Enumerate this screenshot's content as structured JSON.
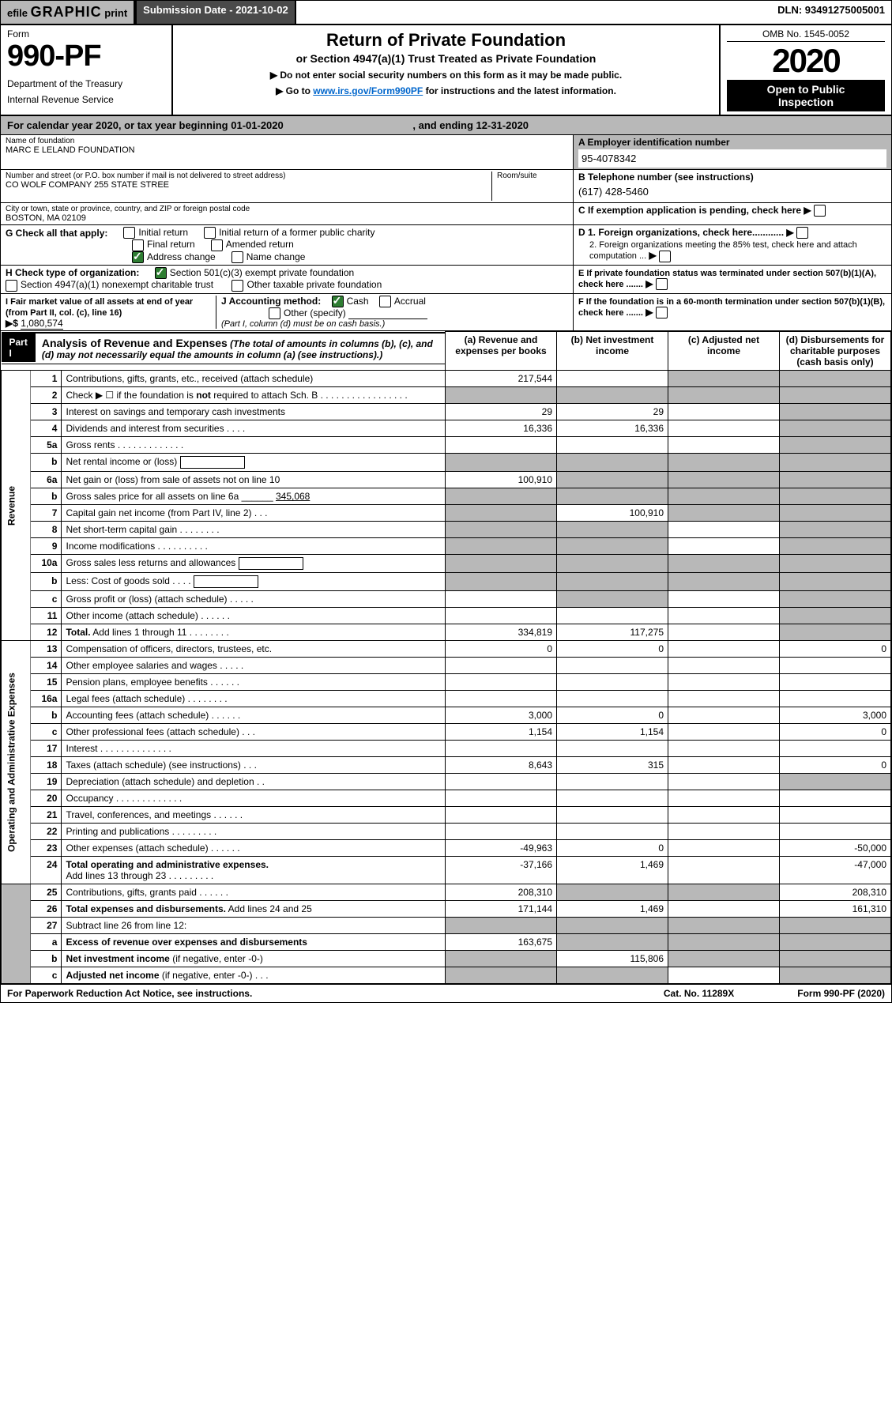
{
  "colors": {
    "header_gray": "#b8b8b8",
    "header_dark": "#4a4a4a",
    "black": "#000000",
    "link": "#0066cc",
    "check_green": "#2e7d32",
    "shade": "#b8b8b8"
  },
  "topbar": {
    "efile": "efile",
    "graphic": "GRAPHIC",
    "print": "print",
    "submission_label": "Submission Date - 2021-10-02",
    "dln": "DLN: 93491275005001"
  },
  "header": {
    "form_word": "Form",
    "form_number": "990-PF",
    "dept1": "Department of the Treasury",
    "dept2": "Internal Revenue Service",
    "title": "Return of Private Foundation",
    "subtitle": "or Section 4947(a)(1) Trust Treated as Private Foundation",
    "note1": "▶ Do not enter social security numbers on this form as it may be made public.",
    "note2_pre": "▶ Go to ",
    "note2_link": "www.irs.gov/Form990PF",
    "note2_post": " for instructions and the latest information.",
    "omb": "OMB No. 1545-0052",
    "year": "2020",
    "openbox1": "Open to Public",
    "openbox2": "Inspection"
  },
  "calyear": {
    "text_pre": "For calendar year 2020, or tax year beginning ",
    "begin": "01-01-2020",
    "mid": ", and ending ",
    "end": "12-31-2020"
  },
  "org": {
    "name_label": "Name of foundation",
    "name": "MARC E LELAND FOUNDATION",
    "addr_label": "Number and street (or P.O. box number if mail is not delivered to street address)",
    "addr": "CO WOLF COMPANY 255 STATE STREE",
    "room_label": "Room/suite",
    "city_label": "City or town, state or province, country, and ZIP or foreign postal code",
    "city": "BOSTON, MA  02109"
  },
  "right_block": {
    "A_label": "A Employer identification number",
    "A_val": "95-4078342",
    "B_label": "B Telephone number (see instructions)",
    "B_val": "(617) 428-5460",
    "C": "C If exemption application is pending, check here",
    "D1": "D 1. Foreign organizations, check here............",
    "D2": "2. Foreign organizations meeting the 85% test, check here and attach computation ...",
    "E": "E If private foundation status was terminated under section 507(b)(1)(A), check here .......",
    "F": "F If the foundation is in a 60-month termination under section 507(b)(1)(B), check here ......."
  },
  "G": {
    "label": "G Check all that apply:",
    "opts": [
      "Initial return",
      "Final return",
      "Address change",
      "Initial return of a former public charity",
      "Amended return",
      "Name change"
    ]
  },
  "H": {
    "label": "H Check type of organization:",
    "o1": "Section 501(c)(3) exempt private foundation",
    "o2": "Section 4947(a)(1) nonexempt charitable trust",
    "o3": "Other taxable private foundation"
  },
  "I": {
    "label": "I Fair market value of all assets at end of year (from Part II, col. (c), line 16)",
    "arrow": "▶$",
    "val": "1,080,574"
  },
  "J": {
    "label": "J Accounting method:",
    "cash": "Cash",
    "accrual": "Accrual",
    "other": "Other (specify)",
    "note": "(Part I, column (d) must be on cash basis.)"
  },
  "part1": {
    "label": "Part I",
    "title": "Analysis of Revenue and Expenses",
    "note": " (The total of amounts in columns (b), (c), and (d) may not necessarily equal the amounts in column (a) (see instructions).)",
    "col_a": "(a) Revenue and expenses per books",
    "col_b": "(b) Net investment income",
    "col_c": "(c) Adjusted net income",
    "col_d": "(d) Disbursements for charitable purposes (cash basis only)"
  },
  "sections": {
    "revenue": "Revenue",
    "opex": "Operating and Administrative Expenses"
  },
  "rows": [
    {
      "n": "1",
      "d": "Contributions, gifts, grants, etc., received (attach schedule)",
      "a": "217,544",
      "b": "",
      "c": "shade",
      "dcol": "shade"
    },
    {
      "n": "2",
      "d": "Check ▶ ☐ if the foundation is <b>not</b> required to attach Sch. B . . . . . . . . . . . . . . . . .",
      "a": "shade",
      "b": "shade",
      "c": "shade",
      "dcol": "shade"
    },
    {
      "n": "3",
      "d": "Interest on savings and temporary cash investments",
      "a": "29",
      "b": "29",
      "c": "",
      "dcol": "shade"
    },
    {
      "n": "4",
      "d": "Dividends and interest from securities . . . .",
      "a": "16,336",
      "b": "16,336",
      "c": "",
      "dcol": "shade"
    },
    {
      "n": "5a",
      "d": "Gross rents . . . . . . . . . . . . .",
      "a": "",
      "b": "",
      "c": "",
      "dcol": "shade"
    },
    {
      "n": "b",
      "d": "Net rental income or (loss) <span class='inner-input'></span>",
      "a": "shade",
      "b": "shade",
      "c": "shade",
      "dcol": "shade"
    },
    {
      "n": "6a",
      "d": "Net gain or (loss) from sale of assets not on line 10",
      "a": "100,910",
      "b": "shade",
      "c": "shade",
      "dcol": "shade"
    },
    {
      "n": "b",
      "d": "Gross sales price for all assets on line 6a ______ <span style='text-decoration:underline'>345,068</span>",
      "a": "shade",
      "b": "shade",
      "c": "shade",
      "dcol": "shade"
    },
    {
      "n": "7",
      "d": "Capital gain net income (from Part IV, line 2) . . .",
      "a": "shade",
      "b": "100,910",
      "c": "shade",
      "dcol": "shade"
    },
    {
      "n": "8",
      "d": "Net short-term capital gain . . . . . . . .",
      "a": "shade",
      "b": "shade",
      "c": "",
      "dcol": "shade"
    },
    {
      "n": "9",
      "d": "Income modifications . . . . . . . . . .",
      "a": "shade",
      "b": "shade",
      "c": "",
      "dcol": "shade"
    },
    {
      "n": "10a",
      "d": "Gross sales less returns and allowances <span class='inner-input'></span>",
      "a": "shade",
      "b": "shade",
      "c": "shade",
      "dcol": "shade"
    },
    {
      "n": "b",
      "d": "Less: Cost of goods sold . . . . <span class='inner-input'></span>",
      "a": "shade",
      "b": "shade",
      "c": "shade",
      "dcol": "shade"
    },
    {
      "n": "c",
      "d": "Gross profit or (loss) (attach schedule) . . . . .",
      "a": "",
      "b": "shade",
      "c": "",
      "dcol": "shade"
    },
    {
      "n": "11",
      "d": "Other income (attach schedule) . . . . . .",
      "a": "",
      "b": "",
      "c": "",
      "dcol": "shade"
    },
    {
      "n": "12",
      "d": "<b>Total.</b> Add lines 1 through 11 . . . . . . . .",
      "a": "334,819",
      "b": "117,275",
      "c": "",
      "dcol": "shade"
    },
    {
      "n": "13",
      "d": "Compensation of officers, directors, trustees, etc.",
      "a": "0",
      "b": "0",
      "c": "",
      "dcol": "0"
    },
    {
      "n": "14",
      "d": "Other employee salaries and wages . . . . .",
      "a": "",
      "b": "",
      "c": "",
      "dcol": ""
    },
    {
      "n": "15",
      "d": "Pension plans, employee benefits . . . . . .",
      "a": "",
      "b": "",
      "c": "",
      "dcol": ""
    },
    {
      "n": "16a",
      "d": "Legal fees (attach schedule) . . . . . . . .",
      "a": "",
      "b": "",
      "c": "",
      "dcol": ""
    },
    {
      "n": "b",
      "d": "Accounting fees (attach schedule) . . . . . .",
      "a": "3,000",
      "b": "0",
      "c": "",
      "dcol": "3,000"
    },
    {
      "n": "c",
      "d": "Other professional fees (attach schedule) . . .",
      "a": "1,154",
      "b": "1,154",
      "c": "",
      "dcol": "0"
    },
    {
      "n": "17",
      "d": "Interest . . . . . . . . . . . . . .",
      "a": "",
      "b": "",
      "c": "",
      "dcol": ""
    },
    {
      "n": "18",
      "d": "Taxes (attach schedule) (see instructions) . . .",
      "a": "8,643",
      "b": "315",
      "c": "",
      "dcol": "0"
    },
    {
      "n": "19",
      "d": "Depreciation (attach schedule) and depletion . .",
      "a": "",
      "b": "",
      "c": "",
      "dcol": "shade"
    },
    {
      "n": "20",
      "d": "Occupancy . . . . . . . . . . . . .",
      "a": "",
      "b": "",
      "c": "",
      "dcol": ""
    },
    {
      "n": "21",
      "d": "Travel, conferences, and meetings . . . . . .",
      "a": "",
      "b": "",
      "c": "",
      "dcol": ""
    },
    {
      "n": "22",
      "d": "Printing and publications . . . . . . . . .",
      "a": "",
      "b": "",
      "c": "",
      "dcol": ""
    },
    {
      "n": "23",
      "d": "Other expenses (attach schedule) . . . . . .",
      "a": "-49,963",
      "b": "0",
      "c": "",
      "dcol": "-50,000"
    },
    {
      "n": "24",
      "d": "<b>Total operating and administrative expenses.</b><br>Add lines 13 through 23 . . . . . . . . .",
      "a": "-37,166",
      "b": "1,469",
      "c": "",
      "dcol": "-47,000"
    },
    {
      "n": "25",
      "d": "Contributions, gifts, grants paid . . . . . .",
      "a": "208,310",
      "b": "shade",
      "c": "shade",
      "dcol": "208,310"
    },
    {
      "n": "26",
      "d": "<b>Total expenses and disbursements.</b> Add lines 24 and 25",
      "a": "171,144",
      "b": "1,469",
      "c": "",
      "dcol": "161,310"
    },
    {
      "n": "27",
      "d": "Subtract line 26 from line 12:",
      "a": "shade",
      "b": "shade",
      "c": "shade",
      "dcol": "shade"
    },
    {
      "n": "a",
      "d": "<b>Excess of revenue over expenses and disbursements</b>",
      "a": "163,675",
      "b": "shade",
      "c": "shade",
      "dcol": "shade"
    },
    {
      "n": "b",
      "d": "<b>Net investment income</b> (if negative, enter -0-)",
      "a": "shade",
      "b": "115,806",
      "c": "shade",
      "dcol": "shade"
    },
    {
      "n": "c",
      "d": "<b>Adjusted net income</b> (if negative, enter -0-) . . .",
      "a": "shade",
      "b": "shade",
      "c": "",
      "dcol": "shade"
    }
  ],
  "footer": {
    "left": "For Paperwork Reduction Act Notice, see instructions.",
    "mid": "Cat. No. 11289X",
    "right": "Form 990-PF (2020)"
  }
}
